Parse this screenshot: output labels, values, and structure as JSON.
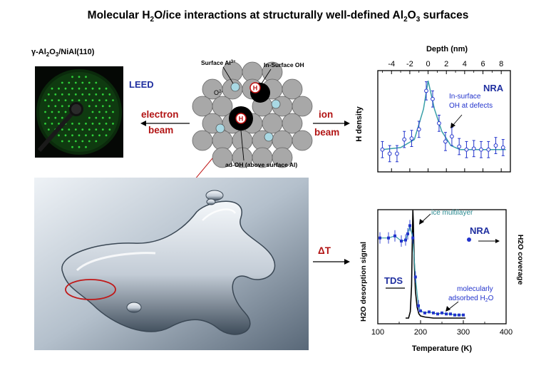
{
  "title_parts": {
    "pre": "Molecular  H",
    "sub1": "2",
    "mid1": "O/ice interactions at structurally well-defined  Al",
    "sub2": "2",
    "mid2": "O",
    "sub3": "3",
    "post": " surfaces"
  },
  "substrate_parts": {
    "a": "γ-Al",
    "b": "2",
    "c": "O",
    "d": "3",
    "e": "/NiAl(110)"
  },
  "leed_label": "LEED",
  "electron_beam": {
    "line1": "electron",
    "line2": "beam"
  },
  "ion_beam": {
    "line1": "ion",
    "line2": "beam"
  },
  "delta_t": "ΔT",
  "model": {
    "surface_al": "Surface Al",
    "surface_al_sup": "3+",
    "in_surface_oh": "In-Surface OH",
    "o2_label": "O",
    "o2_sup": "2-",
    "h_label": "H",
    "ad_oh": "ad-OH (above surface Al)"
  },
  "colors": {
    "title_text": "#000000",
    "accent_red": "#b21414",
    "accent_blue": "#1f2fa0",
    "fit_teal": "#3aa0a8",
    "data_blue": "#2233cc",
    "leed_green": "#2fd03a",
    "atom_gray": "#a8a8a8",
    "atom_cyan": "#a9d9e4"
  },
  "chart_data": [
    {
      "type": "scatter",
      "title": "NRA",
      "xlabel": "Depth (nm)",
      "ylabel": "H density",
      "x_ticks": [
        -4,
        -2,
        0,
        2,
        4,
        6,
        8
      ],
      "xlim": [
        -5.5,
        9.0
      ],
      "ylim": [
        0,
        1.0
      ],
      "annotation": {
        "line1": "In-surface",
        "line2": "OH at defects"
      },
      "series": [
        {
          "x": [
            -5.0,
            -4.2,
            -3.4,
            -2.6,
            -1.8,
            -1.0,
            -0.2,
            0.5,
            1.2,
            1.9,
            2.6,
            3.4,
            4.2,
            5.0,
            5.8,
            6.6,
            7.4,
            8.2
          ],
          "y": [
            0.22,
            0.18,
            0.18,
            0.32,
            0.33,
            0.42,
            0.8,
            0.72,
            0.48,
            0.3,
            0.35,
            0.25,
            0.22,
            0.23,
            0.22,
            0.22,
            0.26,
            0.24
          ],
          "err": [
            0.08,
            0.08,
            0.08,
            0.08,
            0.08,
            0.08,
            0.09,
            0.08,
            0.08,
            0.09,
            0.09,
            0.08,
            0.08,
            0.08,
            0.08,
            0.08,
            0.08,
            0.08
          ]
        }
      ],
      "fit": {
        "x": [
          -5.0,
          -3.0,
          -1.5,
          -0.5,
          0.0,
          0.7,
          1.5,
          2.5,
          3.5,
          8.5
        ],
        "y": [
          0.22,
          0.24,
          0.32,
          0.62,
          0.9,
          0.62,
          0.4,
          0.26,
          0.22,
          0.22
        ]
      }
    },
    {
      "type": "line",
      "xlabel": "Temperature (K)",
      "ylabel_left": "H2O desorption signal",
      "ylabel_right": "H2O coverage",
      "x_ticks": [
        100,
        200,
        300,
        400
      ],
      "xlim": [
        100,
        400
      ],
      "ylim": [
        0,
        1.0
      ],
      "series": [
        {
          "name": "TDS",
          "x": [
            165,
            172,
            176,
            179,
            181,
            182,
            183,
            185,
            188,
            192,
            196,
            200,
            210,
            230,
            260,
            290,
            305
          ],
          "y": [
            0.0,
            0.0,
            0.06,
            0.3,
            0.8,
            1.0,
            0.9,
            0.55,
            0.25,
            0.1,
            0.04,
            0.02,
            0.01,
            0.0,
            0.0,
            0.0,
            0.0
          ]
        },
        {
          "name": "NRA",
          "x": [
            105,
            125,
            140,
            155,
            165,
            170,
            175,
            182,
            188,
            195,
            200,
            210,
            220,
            230,
            240,
            250,
            260,
            270,
            280,
            290,
            300
          ],
          "y": [
            0.78,
            0.78,
            0.8,
            0.75,
            0.76,
            0.82,
            0.9,
            0.78,
            0.4,
            0.12,
            0.07,
            0.05,
            0.06,
            0.05,
            0.04,
            0.05,
            0.04,
            0.04,
            0.03,
            0.03,
            0.03
          ]
        }
      ],
      "legend": {
        "tds": "TDS",
        "nra": "NRA"
      },
      "annotations": {
        "ice_multilayer": "ice multilayer",
        "mol_ads_line1": "molecularly",
        "mol_ads_line2": "adsorbed H",
        "mol_ads_sub": "2",
        "mol_ads_tail": "O"
      }
    }
  ]
}
